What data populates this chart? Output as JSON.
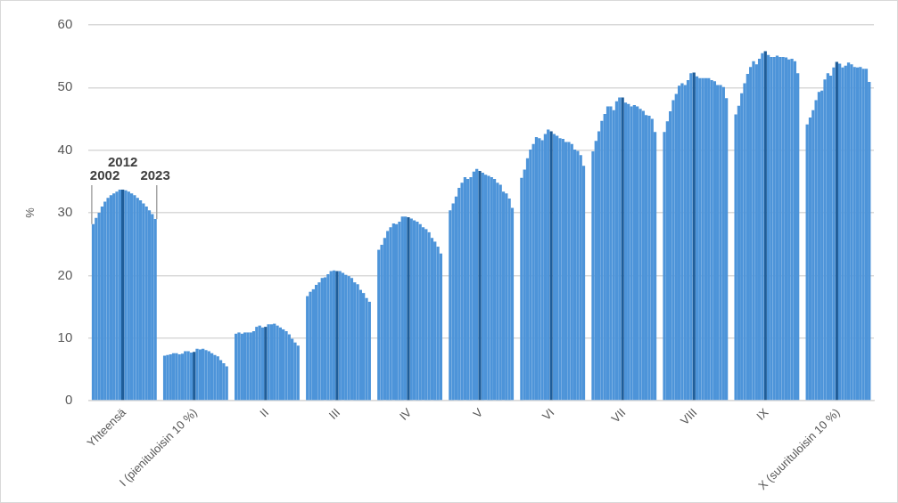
{
  "chart_data": {
    "type": "bar",
    "ylabel": "%",
    "categories": [
      "Yhteensä",
      "I (pienituloisin 10 %)",
      "II",
      "III",
      "IV",
      "V",
      "VI",
      "VII",
      "VIII",
      "IX",
      "X (suurituloisin 10 %)"
    ],
    "ylim": [
      0,
      60
    ],
    "yticks": [
      0,
      10,
      20,
      30,
      40,
      50,
      60
    ],
    "grid": "y",
    "legend": false,
    "series": [
      {
        "name": "2002",
        "color": "#4d94d9",
        "values": [
          28.2,
          7.2,
          10.7,
          16.7,
          24.1,
          30.4,
          35.6,
          39.8,
          42.9,
          45.7,
          44.1
        ]
      },
      {
        "color": "#4d94d9",
        "values": [
          29.2,
          7.3,
          10.9,
          17.4,
          24.9,
          31.5,
          36.9,
          41.5,
          44.6,
          47.1,
          45.2
        ]
      },
      {
        "color": "#4d94d9",
        "values": [
          30.0,
          7.4,
          10.7,
          17.8,
          26.0,
          32.6,
          38.7,
          43.0,
          46.2,
          49.1,
          46.4
        ]
      },
      {
        "color": "#4d94d9",
        "values": [
          31.0,
          7.6,
          10.9,
          18.5,
          27.1,
          34.0,
          40.1,
          44.7,
          48.0,
          50.7,
          48.0
        ]
      },
      {
        "color": "#4d94d9",
        "values": [
          31.8,
          7.6,
          10.9,
          18.9,
          27.7,
          34.8,
          41.0,
          45.8,
          49.0,
          52.2,
          49.3
        ]
      },
      {
        "color": "#4d94d9",
        "values": [
          32.4,
          7.4,
          10.9,
          19.6,
          28.3,
          35.7,
          42.1,
          47.0,
          50.3,
          53.3,
          49.5
        ]
      },
      {
        "color": "#4d94d9",
        "values": [
          32.8,
          7.5,
          11.1,
          19.7,
          28.2,
          35.4,
          41.9,
          47.0,
          50.7,
          54.2,
          51.3
        ]
      },
      {
        "color": "#4d94d9",
        "values": [
          33.1,
          7.9,
          11.8,
          20.2,
          28.6,
          35.7,
          41.6,
          46.4,
          50.4,
          53.7,
          52.3
        ]
      },
      {
        "color": "#4d94d9",
        "values": [
          33.4,
          7.9,
          12.0,
          20.7,
          29.4,
          36.6,
          42.6,
          47.8,
          51.2,
          54.6,
          51.9
        ]
      },
      {
        "color": "#4d94d9",
        "values": [
          33.7,
          7.7,
          11.7,
          20.8,
          29.4,
          37.0,
          43.3,
          48.4,
          52.3,
          55.5,
          53.2
        ]
      },
      {
        "name": "2012",
        "color": "#1f5d99",
        "values": [
          33.7,
          7.8,
          11.8,
          20.7,
          29.3,
          36.7,
          43.0,
          48.4,
          52.4,
          55.8,
          54.1
        ]
      },
      {
        "color": "#4d94d9",
        "values": [
          33.6,
          8.3,
          12.2,
          20.7,
          29.1,
          36.4,
          42.6,
          47.6,
          51.8,
          55.2,
          53.8
        ]
      },
      {
        "color": "#4d94d9",
        "values": [
          33.4,
          8.2,
          12.2,
          20.4,
          28.8,
          36.1,
          42.3,
          47.4,
          51.5,
          54.9,
          53.2
        ]
      },
      {
        "color": "#4d94d9",
        "values": [
          33.1,
          8.3,
          12.3,
          20.1,
          28.6,
          35.9,
          41.9,
          47.0,
          51.5,
          54.9,
          53.5
        ]
      },
      {
        "color": "#4d94d9",
        "values": [
          32.8,
          8.1,
          12.0,
          19.9,
          28.2,
          35.7,
          41.8,
          47.2,
          51.5,
          55.1,
          54.0
        ]
      },
      {
        "color": "#4d94d9",
        "values": [
          32.4,
          7.9,
          11.7,
          19.6,
          27.7,
          35.4,
          41.3,
          47.0,
          51.5,
          54.9,
          53.7
        ]
      },
      {
        "color": "#4d94d9",
        "values": [
          32.0,
          7.6,
          11.4,
          18.9,
          27.4,
          34.8,
          41.3,
          46.6,
          51.2,
          54.9,
          53.3
        ]
      },
      {
        "color": "#4d94d9",
        "values": [
          31.5,
          7.3,
          11.1,
          18.6,
          26.9,
          34.5,
          41.0,
          46.3,
          51.0,
          54.8,
          53.2
        ]
      },
      {
        "color": "#4d94d9",
        "values": [
          31.0,
          7.1,
          10.6,
          17.7,
          26.0,
          33.4,
          40.1,
          45.6,
          50.4,
          54.5,
          53.3
        ]
      },
      {
        "color": "#4d94d9",
        "values": [
          30.4,
          6.5,
          9.9,
          17.2,
          25.4,
          33.1,
          39.9,
          45.5,
          50.4,
          54.6,
          53.0
        ]
      },
      {
        "color": "#4d94d9",
        "values": [
          29.8,
          6.0,
          9.3,
          16.4,
          24.6,
          32.3,
          39.2,
          45.0,
          50.1,
          54.2,
          53.0
        ]
      },
      {
        "name": "2023",
        "color": "#4d94d9",
        "values": [
          29.0,
          5.5,
          8.8,
          15.8,
          23.5,
          30.8,
          37.5,
          42.9,
          48.3,
          52.3,
          50.9
        ]
      }
    ]
  }
}
